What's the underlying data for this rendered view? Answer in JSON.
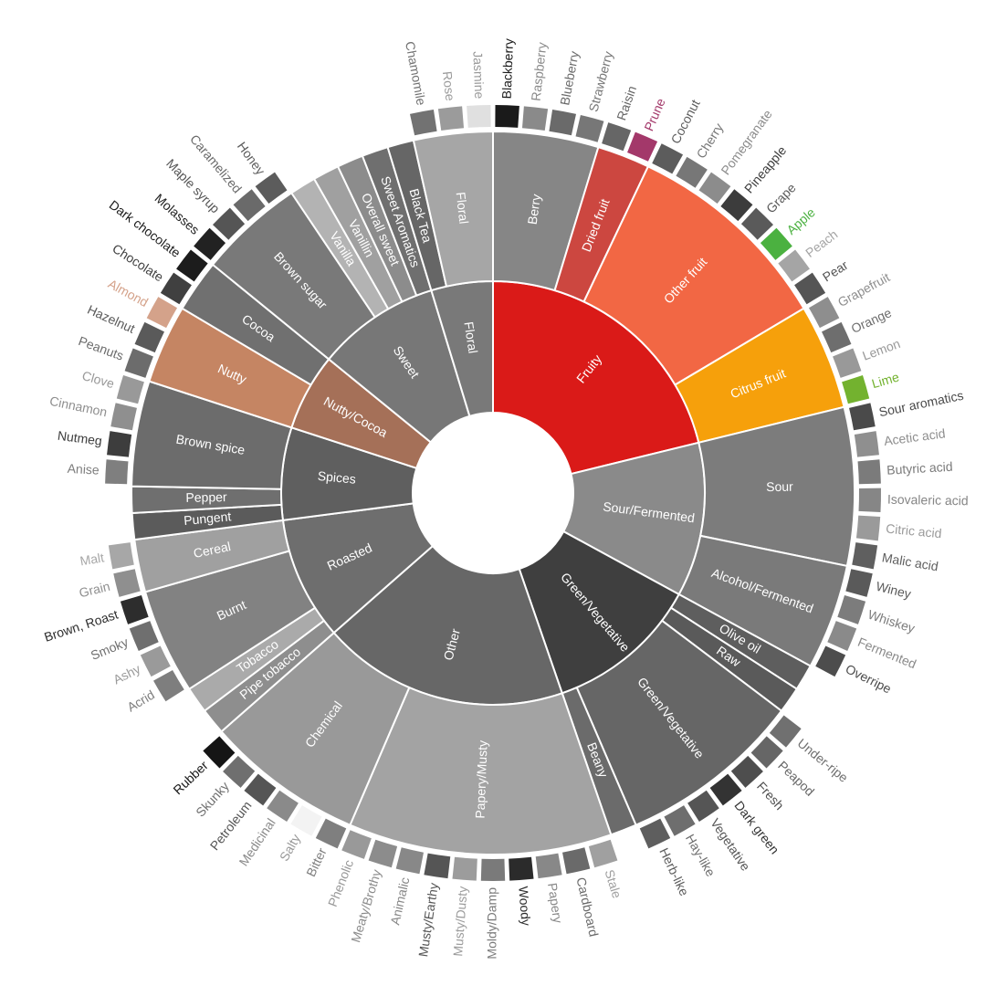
{
  "chart_data": {
    "type": "sunburst",
    "nodes": [
      {
        "label": "Fruity",
        "color": "#da1a18",
        "children": [
          {
            "label": "Berry",
            "color": "#868686",
            "children": [
              {
                "label": "Blackberry",
                "color": "#1a1a1a"
              },
              {
                "label": "Raspberry",
                "color": "#8a8a8a"
              },
              {
                "label": "Blueberry",
                "color": "#6a6a6a"
              },
              {
                "label": "Strawberry",
                "color": "#777777"
              }
            ]
          },
          {
            "label": "Dried fruit",
            "color": "#cc4740",
            "children": [
              {
                "label": "Raisin",
                "color": "#666666"
              },
              {
                "label": "Prune",
                "color": "#a3386a"
              }
            ]
          },
          {
            "label": "Other fruit",
            "color": "#f26744",
            "children": [
              {
                "label": "Coconut",
                "color": "#5c5c5c"
              },
              {
                "label": "Cherry",
                "color": "#777777"
              },
              {
                "label": "Pomegranate",
                "color": "#8c8c8c"
              },
              {
                "label": "Pineapple",
                "color": "#3c3c3c"
              },
              {
                "label": "Grape",
                "color": "#5a5a5a"
              },
              {
                "label": "Apple",
                "color": "#4bb140"
              },
              {
                "label": "Peach",
                "color": "#a5a5a5"
              },
              {
                "label": "Pear",
                "color": "#555555"
              }
            ]
          },
          {
            "label": "Citrus fruit",
            "color": "#f6a00b",
            "children": [
              {
                "label": "Grapefruit",
                "color": "#8e8e8e"
              },
              {
                "label": "Orange",
                "color": "#6e6e6e"
              },
              {
                "label": "Lemon",
                "color": "#999999"
              },
              {
                "label": "Lime",
                "color": "#73b22f"
              }
            ]
          }
        ]
      },
      {
        "label": "Sour/Fermented",
        "color": "#8a8a8a",
        "children": [
          {
            "label": "Sour",
            "color": "#7c7c7c",
            "children": [
              {
                "label": "Sour aromatics",
                "color": "#4a4a4a"
              },
              {
                "label": "Acetic acid",
                "color": "#8f8f8f"
              },
              {
                "label": "Butyric acid",
                "color": "#7b7b7b"
              },
              {
                "label": "Isovaleric acid",
                "color": "#868686"
              },
              {
                "label": "Citric acid",
                "color": "#9a9a9a"
              },
              {
                "label": "Malic acid",
                "color": "#5f5f5f"
              }
            ]
          },
          {
            "label": "Alcohol/Fermented",
            "color": "#7a7a7a",
            "children": [
              {
                "label": "Winey",
                "color": "#5a5a5a"
              },
              {
                "label": "Whiskey",
                "color": "#7c7c7c"
              },
              {
                "label": "Fermented",
                "color": "#8a8a8a"
              },
              {
                "label": "Overripe",
                "color": "#4d4d4d"
              }
            ]
          }
        ]
      },
      {
        "label": "Green/Vegetative",
        "color": "#3f3f3f",
        "children": [
          {
            "label": "Olive oil",
            "color": "#5e5e5e"
          },
          {
            "label": "Raw",
            "color": "#5a5a5a"
          },
          {
            "label": "Green/Vegetative",
            "color": "#666666",
            "children": [
              {
                "label": "Under-ripe",
                "color": "#707070"
              },
              {
                "label": "Peapod",
                "color": "#666666"
              },
              {
                "label": "Fresh",
                "color": "#4e4e4e"
              },
              {
                "label": "Dark green",
                "color": "#333333"
              },
              {
                "label": "Vegetative",
                "color": "#555555"
              },
              {
                "label": "Hay-like",
                "color": "#6e6e6e"
              },
              {
                "label": "Herb-like",
                "color": "#5e5e5e"
              }
            ]
          },
          {
            "label": "Beany",
            "color": "#6b6b6b"
          }
        ]
      },
      {
        "label": "Other",
        "color": "#676767",
        "children": [
          {
            "label": "Papery/Musty",
            "color": "#a3a3a3",
            "children": [
              {
                "label": "Stale",
                "color": "#a0a0a0"
              },
              {
                "label": "Cardboard",
                "color": "#6a6a6a"
              },
              {
                "label": "Papery",
                "color": "#888888"
              },
              {
                "label": "Woody",
                "color": "#2b2b2b"
              },
              {
                "label": "Moldy/Damp",
                "color": "#7a7a7a"
              },
              {
                "label": "Musty/Dusty",
                "color": "#9c9c9c"
              },
              {
                "label": "Musty/Earthy",
                "color": "#555555"
              },
              {
                "label": "Animalic",
                "color": "#888888"
              },
              {
                "label": "Meaty/Brothy",
                "color": "#8c8c8c"
              },
              {
                "label": "Phenolic",
                "color": "#999999"
              }
            ]
          },
          {
            "label": "Chemical",
            "color": "#999999",
            "children": [
              {
                "label": "Bitter",
                "color": "#7f7f7f"
              },
              {
                "label": "Salty",
                "color": "#f3f3f3"
              },
              {
                "label": "Medicinal",
                "color": "#8a8a8a"
              },
              {
                "label": "Petroleum",
                "color": "#555555"
              },
              {
                "label": "Skunky",
                "color": "#6f6f6f"
              },
              {
                "label": "Rubber",
                "color": "#151515"
              }
            ]
          }
        ]
      },
      {
        "label": "Roasted",
        "color": "#6e6e6e",
        "children": [
          {
            "label": "Pipe tobacco",
            "color": "#8e8e8e"
          },
          {
            "label": "Tobacco",
            "color": "#aaaaaa"
          },
          {
            "label": "Burnt",
            "color": "#828282",
            "children": [
              {
                "label": "Acrid",
                "color": "#7e7e7e"
              },
              {
                "label": "Ashy",
                "color": "#9a9a9a"
              },
              {
                "label": "Smoky",
                "color": "#6f6f6f"
              },
              {
                "label": "Brown, Roast",
                "color": "#2d2d2d"
              }
            ]
          },
          {
            "label": "Cereal",
            "color": "#a0a0a0",
            "children": [
              {
                "label": "Grain",
                "color": "#8f8f8f"
              },
              {
                "label": "Malt",
                "color": "#a7a7a7"
              }
            ]
          }
        ]
      },
      {
        "label": "Spices",
        "color": "#5f5f5f",
        "children": [
          {
            "label": "Pungent",
            "color": "#5b5b5b"
          },
          {
            "label": "Pepper",
            "color": "#6f6f6f"
          },
          {
            "label": "Brown spice",
            "color": "#6c6c6c",
            "children": [
              {
                "label": "Anise",
                "color": "#7f7f7f"
              },
              {
                "label": "Nutmeg",
                "color": "#3d3d3d"
              },
              {
                "label": "Cinnamon",
                "color": "#8f8f8f"
              },
              {
                "label": "Clove",
                "color": "#999999"
              }
            ]
          }
        ]
      },
      {
        "label": "Nutty/Cocoa",
        "color": "#a57058",
        "children": [
          {
            "label": "Nutty",
            "color": "#c58563",
            "children": [
              {
                "label": "Peanuts",
                "color": "#6c6c6c"
              },
              {
                "label": "Hazelnut",
                "color": "#5a5a5a"
              },
              {
                "label": "Almond",
                "color": "#d4a28a"
              }
            ]
          },
          {
            "label": "Cocoa",
            "color": "#707070",
            "children": [
              {
                "label": "Chocolate",
                "color": "#404040"
              },
              {
                "label": "Dark chocolate",
                "color": "#1c1c1c"
              }
            ]
          }
        ]
      },
      {
        "label": "Sweet",
        "color": "#777777",
        "children": [
          {
            "label": "Brown sugar",
            "color": "#797979",
            "children": [
              {
                "label": "Molasses",
                "color": "#222222"
              },
              {
                "label": "Maple syrup",
                "color": "#555555"
              },
              {
                "label": "Caramelized",
                "color": "#6a6a6a"
              },
              {
                "label": "Honey",
                "color": "#5c5c5c"
              }
            ]
          },
          {
            "label": "Vanilla",
            "color": "#b3b3b3"
          },
          {
            "label": "Vanillin",
            "color": "#a0a0a0"
          },
          {
            "label": "Overall sweet",
            "color": "#8c8c8c"
          },
          {
            "label": "Sweet Aromatics",
            "color": "#6f6f6f"
          }
        ]
      },
      {
        "label": "Floral",
        "color": "#797979",
        "children": [
          {
            "label": "Black Tea",
            "color": "#666666"
          },
          {
            "label": "Floral",
            "color": "#a6a6a6",
            "children": [
              {
                "label": "Chamomile",
                "color": "#727272"
              },
              {
                "label": "Rose",
                "color": "#9b9b9b"
              },
              {
                "label": "Jasmine",
                "color": "#e0e0e0"
              }
            ]
          }
        ]
      }
    ]
  }
}
